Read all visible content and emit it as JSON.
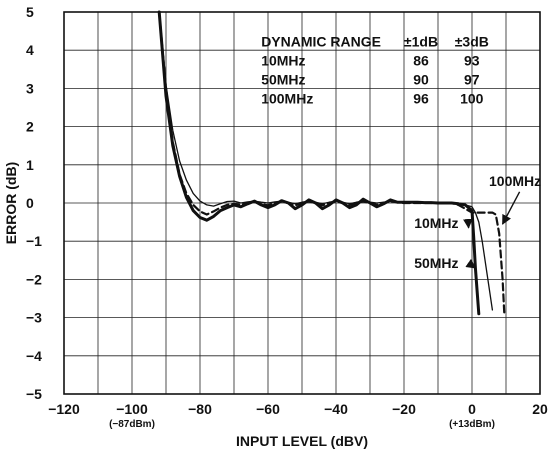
{
  "chart_data": {
    "type": "line",
    "xlabel": "INPUT LEVEL (dBV)",
    "ylabel": "ERROR (dB)",
    "xlim": [
      -120,
      20
    ],
    "ylim": [
      -5,
      5
    ],
    "grid": true,
    "x_ticks": [
      "−120",
      "−100",
      "−80",
      "−60",
      "−40",
      "−20",
      "0",
      "20"
    ],
    "y_ticks": [
      "5",
      "4",
      "3",
      "2",
      "1",
      "0",
      "−1",
      "−2",
      "−3",
      "−4",
      "−5"
    ],
    "x_tick_sublabels": [
      {
        "x": -100,
        "text": "(−87dBm)"
      },
      {
        "x": 0,
        "text": "(+13dBm)"
      }
    ],
    "table": {
      "headers": [
        "DYNAMIC RANGE",
        "±1dB",
        "±3dB"
      ],
      "rows": [
        [
          "10MHz",
          "86",
          "93"
        ],
        [
          "50MHz",
          "90",
          "97"
        ],
        [
          "100MHz",
          "96",
          "100"
        ]
      ]
    },
    "annotations": [
      {
        "text": "100MHz",
        "x": 5,
        "y": 0.45
      },
      {
        "text": "10MHz",
        "x": -17,
        "y": -0.65
      },
      {
        "text": "50MHz",
        "x": -17,
        "y": -1.7
      }
    ],
    "series": [
      {
        "name": "10MHz",
        "style": "thin",
        "x": [
          -92,
          -90,
          -88,
          -86,
          -84,
          -82,
          -80,
          -78,
          -76,
          -74,
          -72,
          -70,
          -68,
          -66,
          -64,
          -62,
          -60,
          -58,
          -56,
          -54,
          -52,
          -50,
          -48,
          -46,
          -44,
          -42,
          -40,
          -38,
          -36,
          -34,
          -32,
          -30,
          -28,
          -26,
          -24,
          -22,
          -20,
          -18,
          -16,
          -14,
          -12,
          -10,
          -8,
          -6,
          -4,
          -2,
          0,
          1,
          2,
          3,
          4,
          5,
          6
        ],
        "y": [
          5.0,
          3.1,
          1.9,
          1.1,
          0.6,
          0.25,
          0.05,
          -0.05,
          -0.08,
          -0.02,
          0.04,
          0.05,
          0.0,
          0.03,
          0.05,
          0.02,
          0.0,
          0.03,
          0.05,
          0.02,
          -0.02,
          0.02,
          0.05,
          0.02,
          -0.02,
          0.02,
          0.05,
          0.02,
          -0.02,
          0.02,
          0.05,
          0.02,
          0.0,
          0.02,
          0.04,
          0.02,
          0.02,
          0.02,
          0.02,
          0.02,
          0.02,
          0.01,
          0.0,
          0.0,
          0.0,
          -0.05,
          -0.1,
          -0.25,
          -0.5,
          -1.0,
          -1.6,
          -2.2,
          -2.8
        ]
      },
      {
        "name": "50MHz",
        "style": "thick",
        "x": [
          -92,
          -90,
          -88,
          -86,
          -84,
          -82,
          -80,
          -78,
          -76,
          -74,
          -72,
          -70,
          -68,
          -66,
          -64,
          -62,
          -60,
          -58,
          -56,
          -54,
          -52,
          -50,
          -48,
          -46,
          -44,
          -42,
          -40,
          -38,
          -36,
          -34,
          -32,
          -30,
          -28,
          -26,
          -24,
          -22,
          -20,
          -18,
          -16,
          -14,
          -12,
          -10,
          -8,
          -6,
          -4,
          -2,
          0,
          0.5,
          1,
          1.5,
          2
        ],
        "y": [
          5.0,
          2.8,
          1.5,
          0.7,
          0.15,
          -0.2,
          -0.38,
          -0.45,
          -0.35,
          -0.2,
          -0.12,
          -0.05,
          -0.1,
          -0.02,
          0.05,
          -0.05,
          -0.12,
          -0.05,
          0.06,
          0.0,
          -0.15,
          -0.05,
          0.08,
          0.0,
          -0.15,
          -0.05,
          0.08,
          0.0,
          -0.12,
          -0.05,
          0.1,
          0.0,
          -0.1,
          -0.02,
          0.08,
          0.02,
          0.02,
          0.02,
          0.02,
          0.01,
          0.01,
          0.0,
          0.0,
          0.0,
          -0.02,
          -0.05,
          -0.2,
          -0.9,
          -1.7,
          -2.3,
          -2.9
        ]
      },
      {
        "name": "100MHz",
        "style": "dashed",
        "x": [
          -92,
          -90,
          -88,
          -86,
          -84,
          -82,
          -80,
          -78,
          -76,
          -74,
          -72,
          -70,
          -68,
          -66,
          -64,
          -62,
          -60,
          -58,
          -56,
          -54,
          -52,
          -50,
          -48,
          -46,
          -44,
          -42,
          -40,
          -38,
          -36,
          -34,
          -32,
          -30,
          -28,
          -26,
          -24,
          -22,
          -20,
          -18,
          -16,
          -14,
          -12,
          -10,
          -8,
          -6,
          -4,
          -2,
          0,
          2,
          4,
          6,
          7,
          8,
          9,
          9.5
        ],
        "y": [
          5.0,
          3.0,
          1.6,
          0.75,
          0.25,
          -0.05,
          -0.22,
          -0.3,
          -0.22,
          -0.12,
          -0.05,
          -0.02,
          -0.05,
          0.0,
          0.03,
          -0.03,
          -0.06,
          0.0,
          0.04,
          0.0,
          -0.06,
          0.0,
          0.04,
          0.0,
          -0.06,
          0.0,
          0.04,
          0.0,
          -0.05,
          0.0,
          0.04,
          0.0,
          -0.05,
          0.0,
          0.04,
          0.02,
          0.0,
          0.0,
          0.0,
          0.0,
          0.0,
          0.0,
          0.0,
          0.0,
          -0.05,
          -0.15,
          -0.25,
          -0.25,
          -0.25,
          -0.25,
          -0.3,
          -0.8,
          -2.0,
          -2.9
        ]
      }
    ]
  }
}
